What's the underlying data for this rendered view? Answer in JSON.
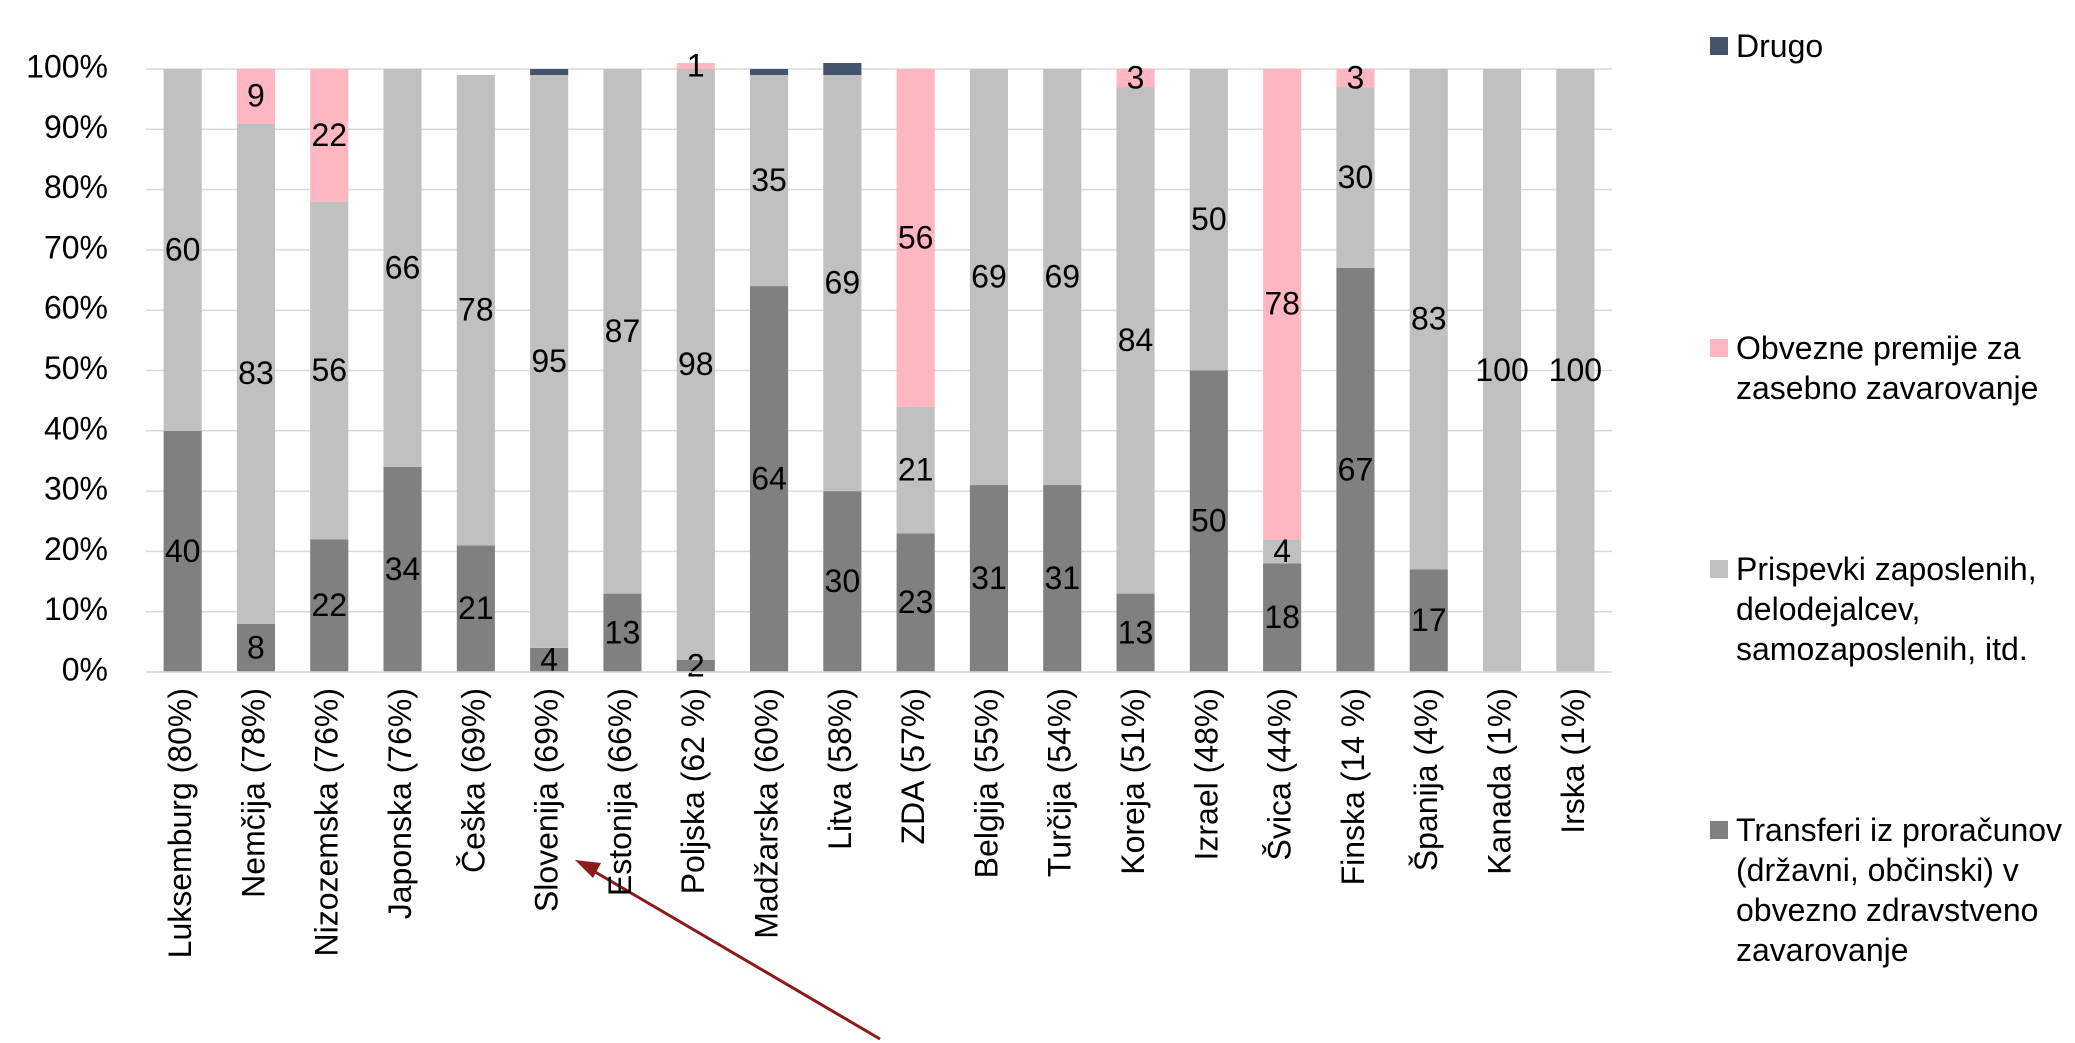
{
  "chart_data": {
    "type": "stacked_bar",
    "categories": [
      "Luksemburg (80%)",
      "Nemčija (78%)",
      "Nizozemska (76%)",
      "Japonska (76%)",
      "Češka (69%)",
      "Slovenija (69%)",
      "Estonija (66%)",
      "Poljska (62 %)",
      "Madžarska (60%)",
      "Litva (58%)",
      "ZDA (57%)",
      "Belgija (55%)",
      "Turčija (54%)",
      "Koreja (51%)",
      "Izrael (48%)",
      "Švica (44%)",
      "Finska (14 %)",
      "Španija (4%)",
      "Kanada (1%)",
      "Irska (1%)"
    ],
    "series": [
      {
        "name": "Transferi iz proračunov (državni, občinski) v obvezno zdravstveno zavarovanje",
        "color": "#808080",
        "data_labels": true,
        "values": [
          40,
          8,
          22,
          34,
          21,
          4,
          13,
          2,
          64,
          30,
          23,
          31,
          31,
          13,
          50,
          18,
          67,
          17,
          null,
          null
        ]
      },
      {
        "name": "Prispevki zaposlenih, delodejalcev, samozaposlenih, itd.",
        "color": "#c0c0c0",
        "data_labels": true,
        "values": [
          60,
          83,
          56,
          66,
          78,
          95,
          87,
          98,
          35,
          69,
          21,
          69,
          69,
          84,
          50,
          4,
          30,
          83,
          100,
          100
        ]
      },
      {
        "name": "Obvezne premije za zasebno zavarovanje",
        "color": "#ffb6c1",
        "data_labels": true,
        "values": [
          null,
          9,
          22,
          null,
          null,
          null,
          null,
          1,
          null,
          null,
          56,
          null,
          null,
          3,
          null,
          78,
          3,
          null,
          null,
          null
        ]
      },
      {
        "name": "Drugo",
        "color": "#44546a",
        "data_labels": false,
        "values": [
          null,
          null,
          null,
          null,
          null,
          1,
          null,
          null,
          1,
          2,
          null,
          null,
          null,
          null,
          null,
          null,
          null,
          null,
          null,
          null
        ]
      }
    ],
    "ylim": [
      0,
      100
    ],
    "yticks": [
      {
        "value": 0,
        "label": "0%"
      },
      {
        "value": 10,
        "label": "10%"
      },
      {
        "value": 20,
        "label": "20%"
      },
      {
        "value": 30,
        "label": "30%"
      },
      {
        "value": 40,
        "label": "40%"
      },
      {
        "value": 50,
        "label": "50%"
      },
      {
        "value": 60,
        "label": "60%"
      },
      {
        "value": 70,
        "label": "70%"
      },
      {
        "value": 80,
        "label": "80%"
      },
      {
        "value": 90,
        "label": "90%"
      },
      {
        "value": 100,
        "label": "100%"
      }
    ],
    "grid": true,
    "legend": "right"
  }
}
